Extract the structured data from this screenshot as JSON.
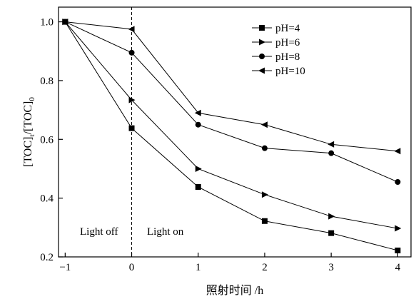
{
  "chart_data": {
    "type": "line",
    "xlabel": "照射时间 /h",
    "ylabel": "[TOC]",
    "ylabel_sub1": "t",
    "ylabel_mid": "/[TOC]",
    "ylabel_sub2": "0",
    "xlim": [
      -1.1,
      4.2
    ],
    "ylim": [
      0.2,
      1.05
    ],
    "xticks": [
      -1,
      0,
      1,
      2,
      3,
      4
    ],
    "xtick_labels": [
      "−1",
      "0",
      "1",
      "2",
      "3",
      "4"
    ],
    "yticks": [
      0.2,
      0.4,
      0.6,
      0.8,
      1.0
    ],
    "ytick_labels": [
      "0.2",
      "0.4",
      "0.6",
      "0.8",
      "1.0"
    ],
    "grid": false,
    "legend_position": "top-right",
    "x": [
      -1,
      0,
      1,
      2,
      3,
      4
    ],
    "series": [
      {
        "name": "pH=4",
        "marker": "square",
        "values": [
          1.0,
          0.638,
          0.438,
          0.322,
          0.281,
          0.222
        ]
      },
      {
        "name": "pH=6",
        "marker": "triangle-right",
        "values": [
          1.0,
          0.734,
          0.5,
          0.412,
          0.338,
          0.297
        ]
      },
      {
        "name": "pH=8",
        "marker": "circle",
        "values": [
          1.0,
          0.895,
          0.65,
          0.57,
          0.553,
          0.455
        ]
      },
      {
        "name": "pH=10",
        "marker": "triangle-left",
        "values": [
          1.0,
          0.975,
          0.69,
          0.65,
          0.583,
          0.56
        ]
      }
    ],
    "vline_x": 0,
    "annotations": [
      "Light off",
      "Light on"
    ]
  }
}
